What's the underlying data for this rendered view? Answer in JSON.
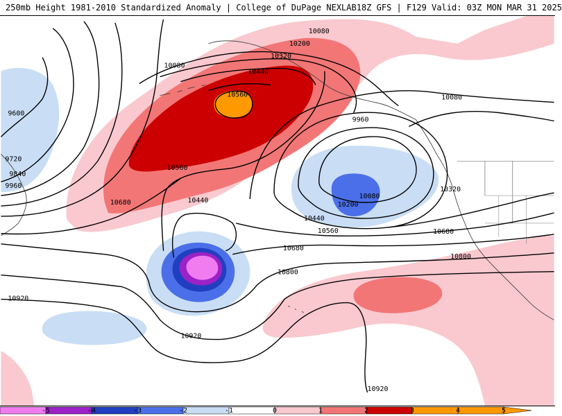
{
  "header": {
    "left_title": "250mb Height 1981-2010 Standardized Anomaly | College of DuPage NEXLAB",
    "right_title": "18Z GFS | F129 Valid: 03Z MON MAR 31 2025"
  },
  "colors": {
    "-5": "#f07cf0",
    "-4": "#9b22c6",
    "-3": "#1f3fc0",
    "-2": "#4b6fe8",
    "-1": "#c9def5",
    "0": "#ffffff",
    "1": "#ffffff",
    "2": "#f9c9cf",
    "3": "#f27676",
    "4": "#cc0000",
    "5": "#ff9900"
  },
  "contour_labels": [
    {
      "text": "10080",
      "key": "top-10080"
    },
    {
      "text": "10200",
      "key": "top-10200"
    },
    {
      "text": "10320",
      "key": "top-10320"
    },
    {
      "text": "10440",
      "key": "top-10440"
    },
    {
      "text": "10560",
      "key": "top-10560"
    },
    {
      "text": "10080",
      "key": "left-10080"
    },
    {
      "text": "9600",
      "key": "left-9600"
    },
    {
      "text": "9720",
      "key": "left-9720"
    },
    {
      "text": "9840",
      "key": "left-9840"
    },
    {
      "text": "9960",
      "key": "left-9960"
    },
    {
      "text": "10560",
      "key": "mid-10560"
    },
    {
      "text": "10680",
      "key": "left-10680"
    },
    {
      "text": "10440",
      "key": "mid-10440"
    },
    {
      "text": "9960",
      "key": "east-9960"
    },
    {
      "text": "10080",
      "key": "east-10080"
    },
    {
      "text": "10200",
      "key": "east-10200"
    },
    {
      "text": "10080",
      "key": "coast-10080"
    },
    {
      "text": "10320",
      "key": "coast-10320"
    },
    {
      "text": "10440",
      "key": "south-10440"
    },
    {
      "text": "10560",
      "key": "south-10560"
    },
    {
      "text": "10680",
      "key": "mid-10680"
    },
    {
      "text": "10680",
      "key": "right-10680"
    },
    {
      "text": "10800",
      "key": "mid-10800"
    },
    {
      "text": "10800",
      "key": "right-10800"
    },
    {
      "text": "10920",
      "key": "left-10920"
    },
    {
      "text": "10920",
      "key": "bottom-10920"
    },
    {
      "text": "10920",
      "key": "floor-10920"
    }
  ],
  "colorbar": {
    "ticks": [
      "-5",
      "-4",
      "-3",
      "-2",
      "-1",
      "0",
      "1",
      "2",
      "3",
      "4",
      "5"
    ]
  }
}
